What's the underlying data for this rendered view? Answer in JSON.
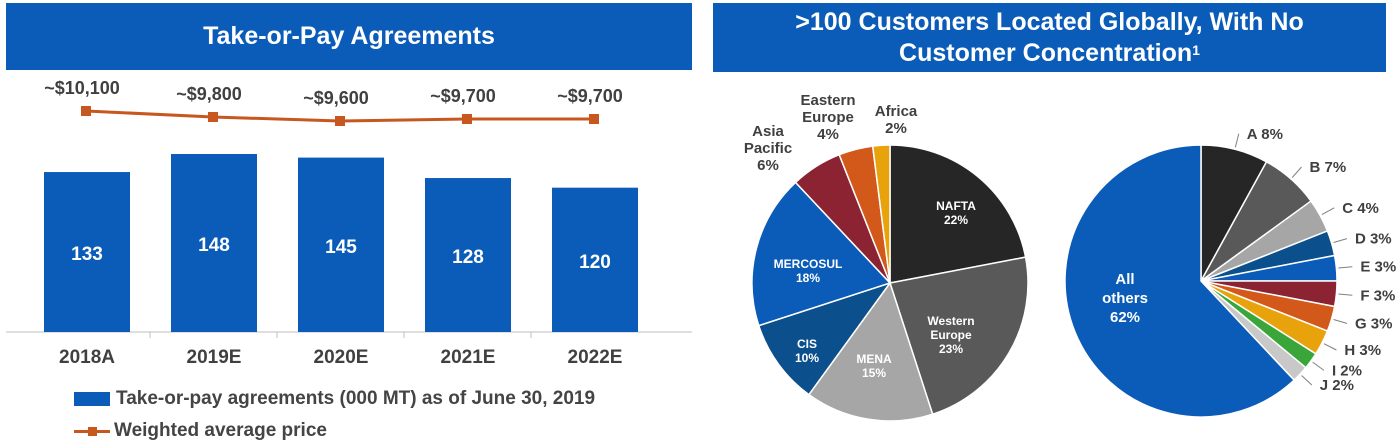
{
  "left_panel": {
    "title": "Take-or-Pay Agreements",
    "legend": [
      {
        "label": "Take-or-pay agreements (000 MT) as of June 30, 2019",
        "color": "#0a5cb8",
        "kind": "bar"
      },
      {
        "label": "Weighted average price",
        "color": "#c8571f",
        "kind": "line"
      }
    ]
  },
  "right_panel": {
    "title_line1": ">100 Customers Located Globally, With No",
    "title_line2": "Customer Concentration",
    "title_sup": "1"
  },
  "chart_data": [
    {
      "type": "bar",
      "title": "Take-or-Pay Agreements",
      "categories": [
        "2018A",
        "2019E",
        "2020E",
        "2021E",
        "2022E"
      ],
      "series": [
        {
          "name": "Take-or-pay agreements (000 MT) as of June 30, 2019",
          "values": [
            133,
            148,
            145,
            128,
            120
          ],
          "color": "#0a5cb8"
        },
        {
          "name": "Weighted average price",
          "type": "line",
          "values": [
            10100,
            9800,
            9600,
            9700,
            9700
          ],
          "labels": [
            "~$10,100",
            "~$9,800",
            "~$9,600",
            "~$9,700",
            "~$9,700"
          ],
          "color": "#c8571f"
        }
      ]
    },
    {
      "type": "pie",
      "slices": [
        {
          "label": "NAFTA",
          "value": 22,
          "text": "22%",
          "color": "#262626",
          "label_color": "#ffffff"
        },
        {
          "label": "Western Europe",
          "value": 23,
          "text": "23%",
          "color": "#595959",
          "label_color": "#ffffff"
        },
        {
          "label": "MENA",
          "value": 15,
          "text": "15%",
          "color": "#a6a6a6",
          "label_color": "#ffffff"
        },
        {
          "label": "CIS",
          "value": 10,
          "text": "10%",
          "color": "#0b4f8c",
          "label_color": "#ffffff"
        },
        {
          "label": "MERCOSUL",
          "value": 18,
          "text": "18%",
          "color": "#0a5cb8",
          "label_color": "#ffffff"
        },
        {
          "label": "Asia Pacific",
          "value": 6,
          "text": "6%",
          "color": "#8b2332",
          "label_color": "#404040"
        },
        {
          "label": "Eastern Europe",
          "value": 4,
          "text": "4%",
          "color": "#d3591a",
          "label_color": "#404040"
        },
        {
          "label": "Africa",
          "value": 2,
          "text": "2%",
          "color": "#e8a30c",
          "label_color": "#404040"
        }
      ]
    },
    {
      "type": "pie",
      "slices": [
        {
          "label": "A",
          "value": 8,
          "text": "8%",
          "color": "#262626"
        },
        {
          "label": "B",
          "value": 7,
          "text": "7%",
          "color": "#595959"
        },
        {
          "label": "C",
          "value": 4,
          "text": "4%",
          "color": "#a6a6a6"
        },
        {
          "label": "D",
          "value": 3,
          "text": "3%",
          "color": "#0b4f8c"
        },
        {
          "label": "E",
          "value": 3,
          "text": "3%",
          "color": "#0a5cb8"
        },
        {
          "label": "F",
          "value": 3,
          "text": "3%",
          "color": "#8b2332"
        },
        {
          "label": "G",
          "value": 3,
          "text": "3%",
          "color": "#d3591a"
        },
        {
          "label": "H",
          "value": 3,
          "text": "3%",
          "color": "#e8a30c"
        },
        {
          "label": "I",
          "value": 2,
          "text": "2%",
          "color": "#3aa63a"
        },
        {
          "label": "J",
          "value": 2,
          "text": "2%",
          "color": "#c8c8c8"
        },
        {
          "label": "All others",
          "value": 62,
          "text": "62%",
          "color": "#0a5cb8"
        }
      ]
    }
  ]
}
